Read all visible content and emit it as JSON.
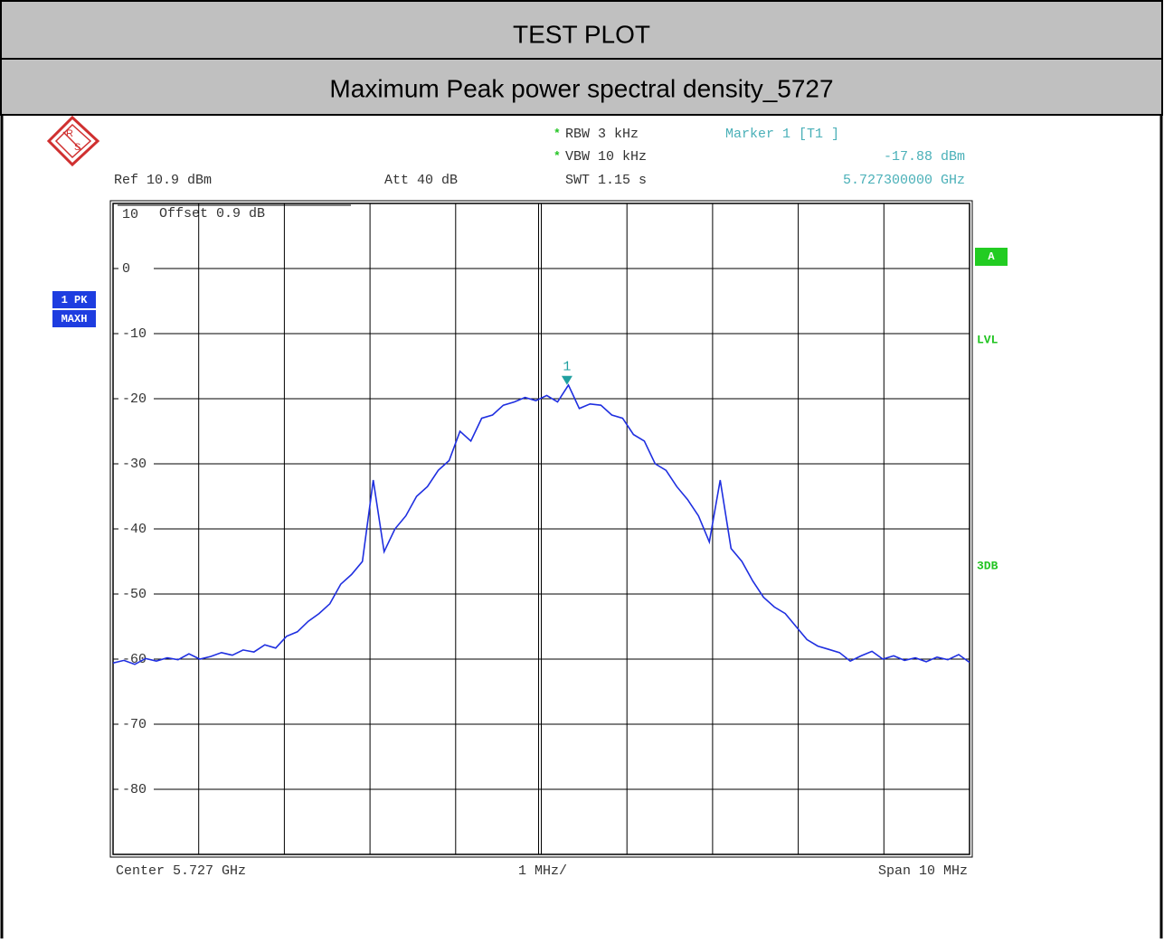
{
  "header": {
    "title": "TEST   PLOT",
    "subtitle": "Maximum Peak power spectral density_5727"
  },
  "logo": [
    "R",
    "S"
  ],
  "settings": {
    "flag": "*",
    "rbw": "RBW 3 kHz",
    "vbw": "VBW 10 kHz",
    "swt": "SWT 1.15 s",
    "ref": "Ref  10.9 dBm",
    "att": "Att  40 dB",
    "offset": "Offset  0.9 dB",
    "marker_title": "Marker 1 [T1 ]",
    "marker_level": "-17.88 dBm",
    "marker_freq": "5.727300000 GHz",
    "center": "Center 5.727 GHz",
    "per_div": "1 MHz/",
    "span": "Span 10 MHz"
  },
  "side": {
    "trace_mode": "1 PK",
    "trace_hold": "MAXH",
    "a": "A",
    "lvl": "LVL",
    "db3": "3DB"
  },
  "chart_data": {
    "type": "line",
    "xlim": [
      5.722,
      5.732
    ],
    "ylim": [
      -90,
      10
    ],
    "yticks": [
      10,
      0,
      -10,
      -20,
      -30,
      -40,
      -50,
      -60,
      -70,
      -80
    ],
    "grid": true,
    "series": [
      {
        "name": "1 PK",
        "color": "#1f2fe0",
        "values": [
          -60.6,
          -60.2,
          -60.8,
          -59.9,
          -60.3,
          -59.8,
          -60.1,
          -59.2,
          -60.0,
          -59.6,
          -59.0,
          -59.4,
          -58.6,
          -58.9,
          -57.8,
          -58.3,
          -56.5,
          -55.8,
          -54.2,
          -53.0,
          -51.5,
          -48.5,
          -47.0,
          -45.0,
          -32.5,
          -43.5,
          -40.0,
          -38.0,
          -35.0,
          -33.5,
          -31.0,
          -29.5,
          -25.0,
          -26.5,
          -23.0,
          -22.5,
          -21.0,
          -20.5,
          -19.8,
          -20.3,
          -19.5,
          -20.5,
          -17.9,
          -21.5,
          -20.8,
          -21.0,
          -22.5,
          -23.0,
          -25.5,
          -26.5,
          -30.0,
          -31.0,
          -33.5,
          -35.5,
          -38.0,
          -42.0,
          -32.5,
          -43.0,
          -45.0,
          -48.0,
          -50.5,
          -52.0,
          -53.0,
          -55.0,
          -57.0,
          -58.0,
          -58.5,
          -59.0,
          -60.3,
          -59.5,
          -58.8,
          -60.0,
          -59.5,
          -60.2,
          -59.8,
          -60.4,
          -59.7,
          -60.1,
          -59.3,
          -60.5
        ]
      }
    ],
    "marker": {
      "label": "1",
      "x": 5.7273,
      "value": -17.88,
      "color": "#20a0a0"
    }
  }
}
